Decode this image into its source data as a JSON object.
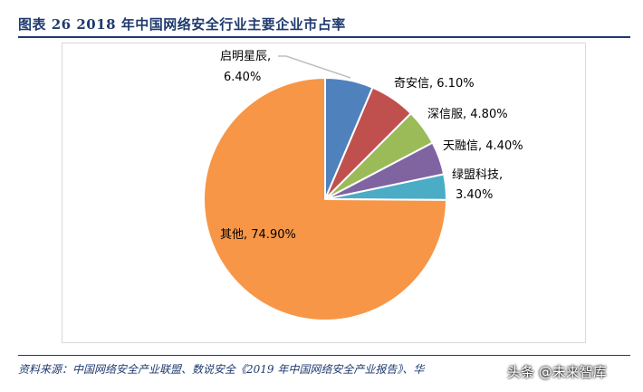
{
  "figure": {
    "title": "图表 26    2018 年中国网络安全行业主要企业市占率",
    "source": "资料来源：中国网络安全产业联盟、数说安全《2019 年中国网络安全产业报告》、华",
    "watermark": "头条 @未来智库"
  },
  "chart_data": {
    "type": "pie",
    "title": "",
    "slices": [
      {
        "name": "启明星辰",
        "value": 6.4,
        "label": "启明星辰,",
        "label2": "6.40%",
        "color": "#4f81bd"
      },
      {
        "name": "奇安信",
        "value": 6.1,
        "label": "奇安信, 6.10%",
        "label2": "",
        "color": "#c0504d"
      },
      {
        "name": "深信服",
        "value": 4.8,
        "label": "深信服, 4.80%",
        "label2": "",
        "color": "#9bbb59"
      },
      {
        "name": "天融信",
        "value": 4.4,
        "label": "天融信, 4.40%",
        "label2": "",
        "color": "#8064a2"
      },
      {
        "name": "绿盟科技",
        "value": 3.4,
        "label": "绿盟科技,",
        "label2": "3.40%",
        "color": "#4bacc6"
      },
      {
        "name": "其他",
        "value": 74.9,
        "label": "其他, 74.90%",
        "label2": "",
        "color": "#f79646"
      }
    ]
  }
}
